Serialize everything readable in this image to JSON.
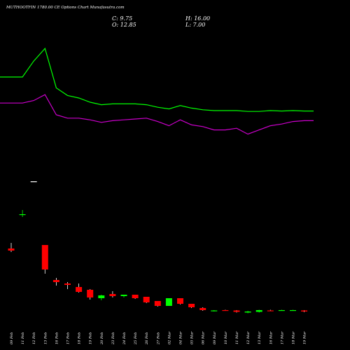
{
  "header": {
    "title": "MUTHOOTFIN 1780.00 CE Options Chart Munafasutra.com",
    "close": "C: 9.75",
    "high": "H: 16.00",
    "open": "O: 12.85",
    "low": "L: 7.00"
  },
  "colors": {
    "background": "#000000",
    "up": "#00ff00",
    "down": "#ff0000",
    "upper_line": "#00ff00",
    "lower_line": "#cc00cc",
    "text": "#ffffff"
  },
  "chart_data": {
    "type": "candlestick",
    "title": "MUTHOOTFIN 1780.00 CE Options Chart Munafasutra.com",
    "categories": [
      "09 Feb",
      "11 Feb",
      "12 Feb",
      "13 Feb",
      "16 Feb",
      "17 Feb",
      "18 Feb",
      "19 Feb",
      "20 Feb",
      "23 Feb",
      "24 Feb",
      "25 Feb",
      "26 Feb",
      "27 Feb",
      "02 Mar",
      "04 Mar",
      "05 Mar",
      "06 Mar",
      "09 Mar",
      "10 Mar",
      "11 Mar",
      "12 Mar",
      "13 Mar",
      "16 Mar",
      "17 Mar",
      "18 Mar",
      "19 Mar"
    ],
    "candles": [
      {
        "open": 105.0,
        "high": 113.0,
        "low": 100.0,
        "close": 102.0
      },
      {
        "open": 153.0,
        "high": 160.0,
        "low": 150.0,
        "close": 154.0
      },
      {
        "open": 201.0,
        "high": 201.0,
        "low": 201.0,
        "close": 201.0
      },
      {
        "open": 110.0,
        "high": 110.0,
        "low": 69.0,
        "close": 75.0
      },
      {
        "open": 60.0,
        "high": 63.0,
        "low": 52.0,
        "close": 57.0
      },
      {
        "open": 55.0,
        "high": 57.0,
        "low": 47.0,
        "close": 53.0
      },
      {
        "open": 50.0,
        "high": 55.0,
        "low": 42.0,
        "close": 43.0
      },
      {
        "open": 46.0,
        "high": 47.0,
        "low": 32.0,
        "close": 35.0
      },
      {
        "open": 34.0,
        "high": 39.0,
        "low": 31.0,
        "close": 38.0
      },
      {
        "open": 40.0,
        "high": 44.0,
        "low": 35.0,
        "close": 37.0
      },
      {
        "open": 37.0,
        "high": 39.0,
        "low": 35.0,
        "close": 39.0
      },
      {
        "open": 39.0,
        "high": 39.0,
        "low": 33.0,
        "close": 34.0
      },
      {
        "open": 36.0,
        "high": 36.0,
        "low": 27.0,
        "close": 28.0
      },
      {
        "open": 30.0,
        "high": 30.0,
        "low": 22.0,
        "close": 23.0
      },
      {
        "open": 23.0,
        "high": 34.0,
        "low": 23.0,
        "close": 34.0
      },
      {
        "open": 34.0,
        "high": 34.0,
        "low": 25.0,
        "close": 26.0
      },
      {
        "open": 26.0,
        "high": 26.0,
        "low": 20.0,
        "close": 21.0
      },
      {
        "open": 20.0,
        "high": 21.0,
        "low": 16.0,
        "close": 17.0
      },
      {
        "open": 16.0,
        "high": 17.0,
        "low": 15.0,
        "close": 16.5
      },
      {
        "open": 17.0,
        "high": 17.5,
        "low": 16.0,
        "close": 16.0
      },
      {
        "open": 16.5,
        "high": 17.0,
        "low": 13.5,
        "close": 14.5
      },
      {
        "open": 13.5,
        "high": 16.0,
        "low": 12.5,
        "close": 15.0
      },
      {
        "open": 14.5,
        "high": 17.5,
        "low": 13.5,
        "close": 17.0
      },
      {
        "open": 16.5,
        "high": 17.5,
        "low": 15.5,
        "close": 16.0
      },
      {
        "open": 16.5,
        "high": 17.5,
        "low": 16.0,
        "close": 17.0
      },
      {
        "open": 16.5,
        "high": 17.5,
        "low": 16.0,
        "close": 17.0
      },
      {
        "open": 16.5,
        "high": 17.0,
        "low": 14.0,
        "close": 15.0
      }
    ],
    "overlay_lines": [
      {
        "color": "#00ff00",
        "values": [
          100,
          100,
          119,
          134,
          87,
          78,
          75,
          70,
          67,
          68,
          68,
          68,
          67,
          64,
          62,
          66,
          63,
          61,
          60,
          60,
          60,
          59,
          59,
          60,
          59.5,
          60,
          59.5
        ]
      },
      {
        "color": "#cc00cc",
        "values": [
          69,
          69,
          72,
          79,
          55,
          51,
          51,
          49,
          46,
          48,
          49,
          50,
          51,
          47,
          42,
          49,
          43,
          41,
          37,
          37,
          39,
          32,
          37,
          42,
          44,
          47,
          48
        ]
      }
    ],
    "ylim": [
      0,
      210
    ],
    "grid": false,
    "legend": "none"
  }
}
